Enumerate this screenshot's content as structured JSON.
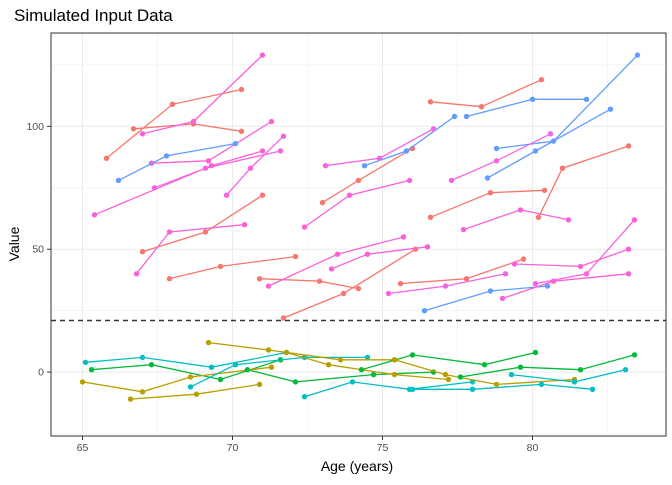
{
  "chart_data": {
    "type": "line",
    "title": "Simulated Input Data",
    "xlabel": "Age (years)",
    "ylabel": "Value",
    "xlim": [
      63.95,
      84.45
    ],
    "ylim": [
      -26,
      138
    ],
    "xticks": [
      65,
      70,
      75,
      80
    ],
    "yticks": [
      0,
      50,
      100
    ],
    "x_tick_labels": [
      "65",
      "70",
      "75",
      "80"
    ],
    "y_tick_labels": [
      "0",
      "50",
      "100"
    ],
    "reference_line": {
      "y": 21,
      "style": "dashed",
      "color": "#333333"
    },
    "grid": true,
    "legend": "none",
    "series": [
      {
        "color": "#f8766d",
        "points": [
          [
            65.8,
            87
          ],
          [
            68.0,
            109
          ],
          [
            70.3,
            115
          ]
        ]
      },
      {
        "color": "#f8766d",
        "points": [
          [
            66.7,
            99
          ],
          [
            68.7,
            101
          ],
          [
            70.3,
            98
          ]
        ]
      },
      {
        "color": "#fb61d7",
        "points": [
          [
            65.4,
            64
          ],
          [
            69.3,
            84
          ],
          [
            71.0,
            90
          ]
        ]
      },
      {
        "color": "#fb61d7",
        "points": [
          [
            67.0,
            97
          ],
          [
            68.7,
            102
          ],
          [
            71.0,
            129
          ]
        ]
      },
      {
        "color": "#fb61d7",
        "points": [
          [
            67.3,
            85
          ],
          [
            69.2,
            86
          ],
          [
            71.3,
            102
          ]
        ]
      },
      {
        "color": "#619cff",
        "points": [
          [
            66.2,
            78
          ],
          [
            67.8,
            88
          ],
          [
            70.1,
            93
          ]
        ]
      },
      {
        "color": "#f564e3",
        "points": [
          [
            67.4,
            75
          ],
          [
            69.1,
            83
          ],
          [
            71.6,
            90
          ]
        ]
      },
      {
        "color": "#f8766d",
        "points": [
          [
            67.0,
            49
          ],
          [
            69.1,
            57
          ],
          [
            71.0,
            72
          ]
        ]
      },
      {
        "color": "#fb61d7",
        "points": [
          [
            66.8,
            40
          ],
          [
            67.9,
            57
          ],
          [
            70.4,
            60
          ]
        ]
      },
      {
        "color": "#f8766d",
        "points": [
          [
            67.9,
            38
          ],
          [
            69.6,
            43
          ],
          [
            72.1,
            47
          ]
        ]
      },
      {
        "color": "#f564e3",
        "points": [
          [
            69.8,
            72
          ],
          [
            70.6,
            83
          ],
          [
            71.7,
            96
          ]
        ]
      },
      {
        "color": "#f8766d",
        "points": [
          [
            70.9,
            38
          ],
          [
            72.9,
            37
          ],
          [
            74.2,
            34
          ]
        ]
      },
      {
        "color": "#fb61d7",
        "points": [
          [
            71.2,
            35
          ],
          [
            73.5,
            48
          ],
          [
            75.7,
            55
          ]
        ]
      },
      {
        "color": "#f8766d",
        "points": [
          [
            73.0,
            69
          ],
          [
            74.2,
            78
          ],
          [
            76.0,
            91
          ]
        ]
      },
      {
        "color": "#619cff",
        "points": [
          [
            74.4,
            84
          ],
          [
            75.8,
            90
          ],
          [
            77.4,
            104
          ]
        ]
      },
      {
        "color": "#f564e3",
        "points": [
          [
            73.1,
            84
          ],
          [
            74.9,
            87
          ],
          [
            76.7,
            99
          ]
        ]
      },
      {
        "color": "#fb61d7",
        "points": [
          [
            72.4,
            59
          ],
          [
            73.9,
            72
          ],
          [
            75.9,
            78
          ]
        ]
      },
      {
        "color": "#f8766d",
        "points": [
          [
            71.7,
            22
          ],
          [
            73.7,
            32
          ],
          [
            76.1,
            50
          ]
        ]
      },
      {
        "color": "#fb61d7",
        "points": [
          [
            73.3,
            42
          ],
          [
            74.5,
            48
          ],
          [
            76.5,
            51
          ]
        ]
      },
      {
        "color": "#f8766d",
        "points": [
          [
            75.6,
            36
          ],
          [
            77.8,
            38
          ],
          [
            79.7,
            46
          ]
        ]
      },
      {
        "color": "#f564e3",
        "points": [
          [
            75.2,
            32
          ],
          [
            77.1,
            35
          ],
          [
            79.1,
            40
          ]
        ]
      },
      {
        "color": "#619cff",
        "points": [
          [
            76.4,
            25
          ],
          [
            78.6,
            33
          ],
          [
            80.5,
            35
          ]
        ]
      },
      {
        "color": "#f8766d",
        "points": [
          [
            76.6,
            110
          ],
          [
            78.3,
            108
          ],
          [
            80.3,
            119
          ]
        ]
      },
      {
        "color": "#619cff",
        "points": [
          [
            77.8,
            104
          ],
          [
            80.0,
            111
          ],
          [
            81.8,
            111
          ]
        ]
      },
      {
        "color": "#619cff",
        "points": [
          [
            78.8,
            91
          ],
          [
            80.7,
            94
          ],
          [
            83.5,
            129
          ]
        ]
      },
      {
        "color": "#f564e3",
        "points": [
          [
            77.3,
            78
          ],
          [
            78.8,
            86
          ],
          [
            80.6,
            97
          ]
        ]
      },
      {
        "color": "#f8766d",
        "points": [
          [
            76.6,
            63
          ],
          [
            78.6,
            73
          ],
          [
            80.4,
            74
          ]
        ]
      },
      {
        "color": "#fb61d7",
        "points": [
          [
            77.7,
            58
          ],
          [
            79.6,
            66
          ],
          [
            81.2,
            62
          ]
        ]
      },
      {
        "color": "#619cff",
        "points": [
          [
            78.5,
            79
          ],
          [
            80.1,
            90
          ],
          [
            82.6,
            107
          ]
        ]
      },
      {
        "color": "#fb61d7",
        "points": [
          [
            79.0,
            30
          ],
          [
            80.7,
            37
          ],
          [
            83.2,
            40
          ]
        ]
      },
      {
        "color": "#f564e3",
        "points": [
          [
            80.1,
            36
          ],
          [
            81.8,
            40
          ],
          [
            83.4,
            62
          ]
        ]
      },
      {
        "color": "#fb61d7",
        "points": [
          [
            79.4,
            44
          ],
          [
            81.6,
            43
          ],
          [
            83.2,
            50
          ]
        ]
      },
      {
        "color": "#f8766d",
        "points": [
          [
            80.2,
            63
          ],
          [
            81.0,
            83
          ],
          [
            83.2,
            92
          ]
        ]
      },
      {
        "color": "#00bfc4",
        "points": [
          [
            65.1,
            4
          ],
          [
            67.0,
            6
          ],
          [
            69.3,
            2
          ],
          [
            71.8,
            8
          ]
        ]
      },
      {
        "color": "#00ba38",
        "points": [
          [
            65.3,
            1
          ],
          [
            67.3,
            3
          ],
          [
            69.6,
            -3
          ],
          [
            71.6,
            5
          ]
        ]
      },
      {
        "color": "#b79f00",
        "points": [
          [
            65.0,
            -4
          ],
          [
            67.0,
            -8
          ],
          [
            68.6,
            -2
          ],
          [
            71.3,
            2
          ]
        ]
      },
      {
        "color": "#00bfc4",
        "points": [
          [
            68.6,
            -6
          ],
          [
            70.1,
            3
          ],
          [
            72.4,
            6
          ],
          [
            74.5,
            6
          ]
        ]
      },
      {
        "color": "#00ba38",
        "points": [
          [
            70.5,
            1
          ],
          [
            72.1,
            -4
          ],
          [
            74.7,
            -1
          ],
          [
            76.7,
            0
          ]
        ]
      },
      {
        "color": "#b79f00",
        "points": [
          [
            71.8,
            8
          ],
          [
            73.2,
            3
          ],
          [
            75.4,
            -1
          ],
          [
            77.2,
            -3
          ]
        ]
      },
      {
        "color": "#00bfc4",
        "points": [
          [
            72.4,
            -10
          ],
          [
            74.0,
            -4
          ],
          [
            75.9,
            -7
          ],
          [
            78.0,
            -4
          ]
        ]
      },
      {
        "color": "#00ba38",
        "points": [
          [
            74.3,
            1
          ],
          [
            76.0,
            7
          ],
          [
            78.4,
            3
          ],
          [
            80.1,
            8
          ]
        ]
      },
      {
        "color": "#b79f00",
        "points": [
          [
            75.4,
            5
          ],
          [
            77.1,
            -1
          ],
          [
            78.8,
            -5
          ],
          [
            81.4,
            -3
          ]
        ]
      },
      {
        "color": "#00bfc4",
        "points": [
          [
            76.0,
            -7
          ],
          [
            78.0,
            -7
          ],
          [
            80.3,
            -5
          ],
          [
            82.0,
            -7
          ]
        ]
      },
      {
        "color": "#00ba38",
        "points": [
          [
            77.6,
            -2
          ],
          [
            79.6,
            2
          ],
          [
            81.6,
            1
          ],
          [
            83.4,
            7
          ]
        ]
      },
      {
        "color": "#00bfc4",
        "points": [
          [
            79.3,
            -1
          ],
          [
            81.4,
            -4
          ],
          [
            83.1,
            1
          ]
        ]
      },
      {
        "color": "#b79f00",
        "points": [
          [
            66.6,
            -11
          ],
          [
            68.8,
            -9
          ],
          [
            70.9,
            -5
          ]
        ]
      },
      {
        "color": "#b79f00",
        "points": [
          [
            69.2,
            12
          ],
          [
            71.2,
            9
          ],
          [
            73.6,
            5
          ],
          [
            75.4,
            5
          ]
        ]
      }
    ]
  }
}
